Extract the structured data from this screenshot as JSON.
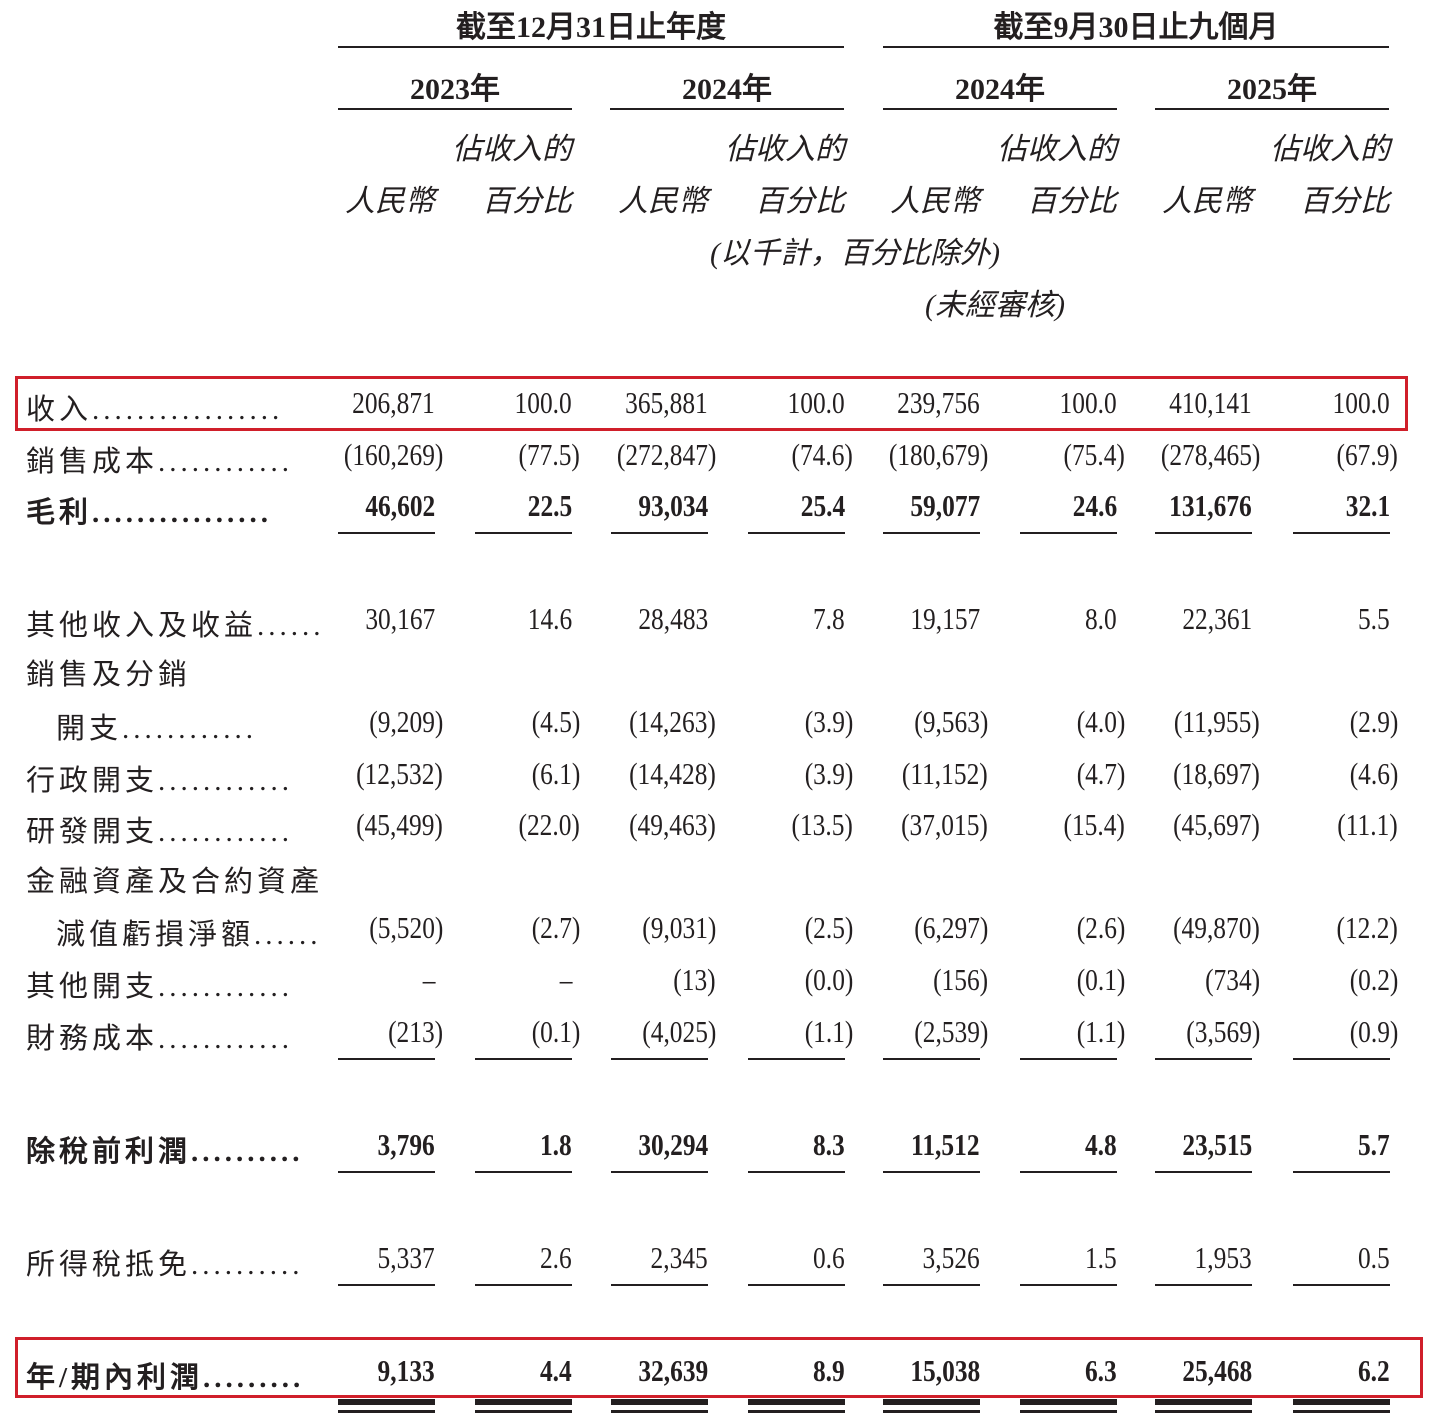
{
  "header": {
    "group_annual": "截至12月31日止年度",
    "group_nine_months": "截至9月30日止九個月",
    "years": [
      "2023年",
      "2024年",
      "2024年",
      "2025年"
    ],
    "pct_line1": "佔收入的",
    "rmb_label": "人民幣",
    "pct_line2": "百分比",
    "unit_note": "(以千計，百分比除外)",
    "unaudited_note": "(未經審核)"
  },
  "colors": {
    "highlight_box": "#d01f2a",
    "text": "#231f20"
  },
  "rows": [
    {
      "label": "收入.................",
      "values": [
        "206,871",
        "100.0",
        "365,881",
        "100.0",
        "239,756",
        "100.0",
        "410,141",
        "100.0"
      ],
      "bold": false,
      "highlight": true
    },
    {
      "label": "銷售成本............",
      "values": [
        "(160,269)",
        "(77.5)",
        "(272,847)",
        "(74.6)",
        "(180,679)",
        "(75.4)",
        "(278,465)",
        "(67.9)"
      ],
      "bold": false
    },
    {
      "label": "毛利................",
      "values": [
        "46,602",
        "22.5",
        "93,034",
        "25.4",
        "59,077",
        "24.6",
        "131,676",
        "32.1"
      ],
      "bold": true,
      "underline": true
    },
    {
      "label": "其他收入及收益......",
      "values": [
        "30,167",
        "14.6",
        "28,483",
        "7.8",
        "19,157",
        "8.0",
        "22,361",
        "5.5"
      ],
      "bold": false
    },
    {
      "label": "銷售及分銷",
      "label2": "開支............",
      "values": [
        "(9,209)",
        "(4.5)",
        "(14,263)",
        "(3.9)",
        "(9,563)",
        "(4.0)",
        "(11,955)",
        "(2.9)"
      ],
      "bold": false
    },
    {
      "label": "行政開支............",
      "values": [
        "(12,532)",
        "(6.1)",
        "(14,428)",
        "(3.9)",
        "(11,152)",
        "(4.7)",
        "(18,697)",
        "(4.6)"
      ],
      "bold": false
    },
    {
      "label": "研發開支............",
      "values": [
        "(45,499)",
        "(22.0)",
        "(49,463)",
        "(13.5)",
        "(37,015)",
        "(15.4)",
        "(45,697)",
        "(11.1)"
      ],
      "bold": false
    },
    {
      "label": "金融資產及合約資產",
      "label2": "減值虧損淨額......",
      "values": [
        "(5,520)",
        "(2.7)",
        "(9,031)",
        "(2.5)",
        "(6,297)",
        "(2.6)",
        "(49,870)",
        "(12.2)"
      ],
      "bold": false
    },
    {
      "label": "其他開支............",
      "values": [
        "–",
        "–",
        "(13)",
        "(0.0)",
        "(156)",
        "(0.1)",
        "(734)",
        "(0.2)"
      ],
      "bold": false
    },
    {
      "label": "財務成本............",
      "values": [
        "(213)",
        "(0.1)",
        "(4,025)",
        "(1.1)",
        "(2,539)",
        "(1.1)",
        "(3,569)",
        "(0.9)"
      ],
      "bold": false,
      "underline": true
    },
    {
      "label": "除稅前利潤..........",
      "values": [
        "3,796",
        "1.8",
        "30,294",
        "8.3",
        "11,512",
        "4.8",
        "23,515",
        "5.7"
      ],
      "bold": true,
      "underline": true
    },
    {
      "label": "所得稅抵免..........",
      "values": [
        "5,337",
        "2.6",
        "2,345",
        "0.6",
        "3,526",
        "1.5",
        "1,953",
        "0.5"
      ],
      "bold": false,
      "underline": true
    },
    {
      "label": "年/期內利潤.........",
      "values": [
        "9,133",
        "4.4",
        "32,639",
        "8.9",
        "15,038",
        "6.3",
        "25,468",
        "6.2"
      ],
      "bold": true,
      "double_underline": true,
      "highlight": true
    }
  ]
}
